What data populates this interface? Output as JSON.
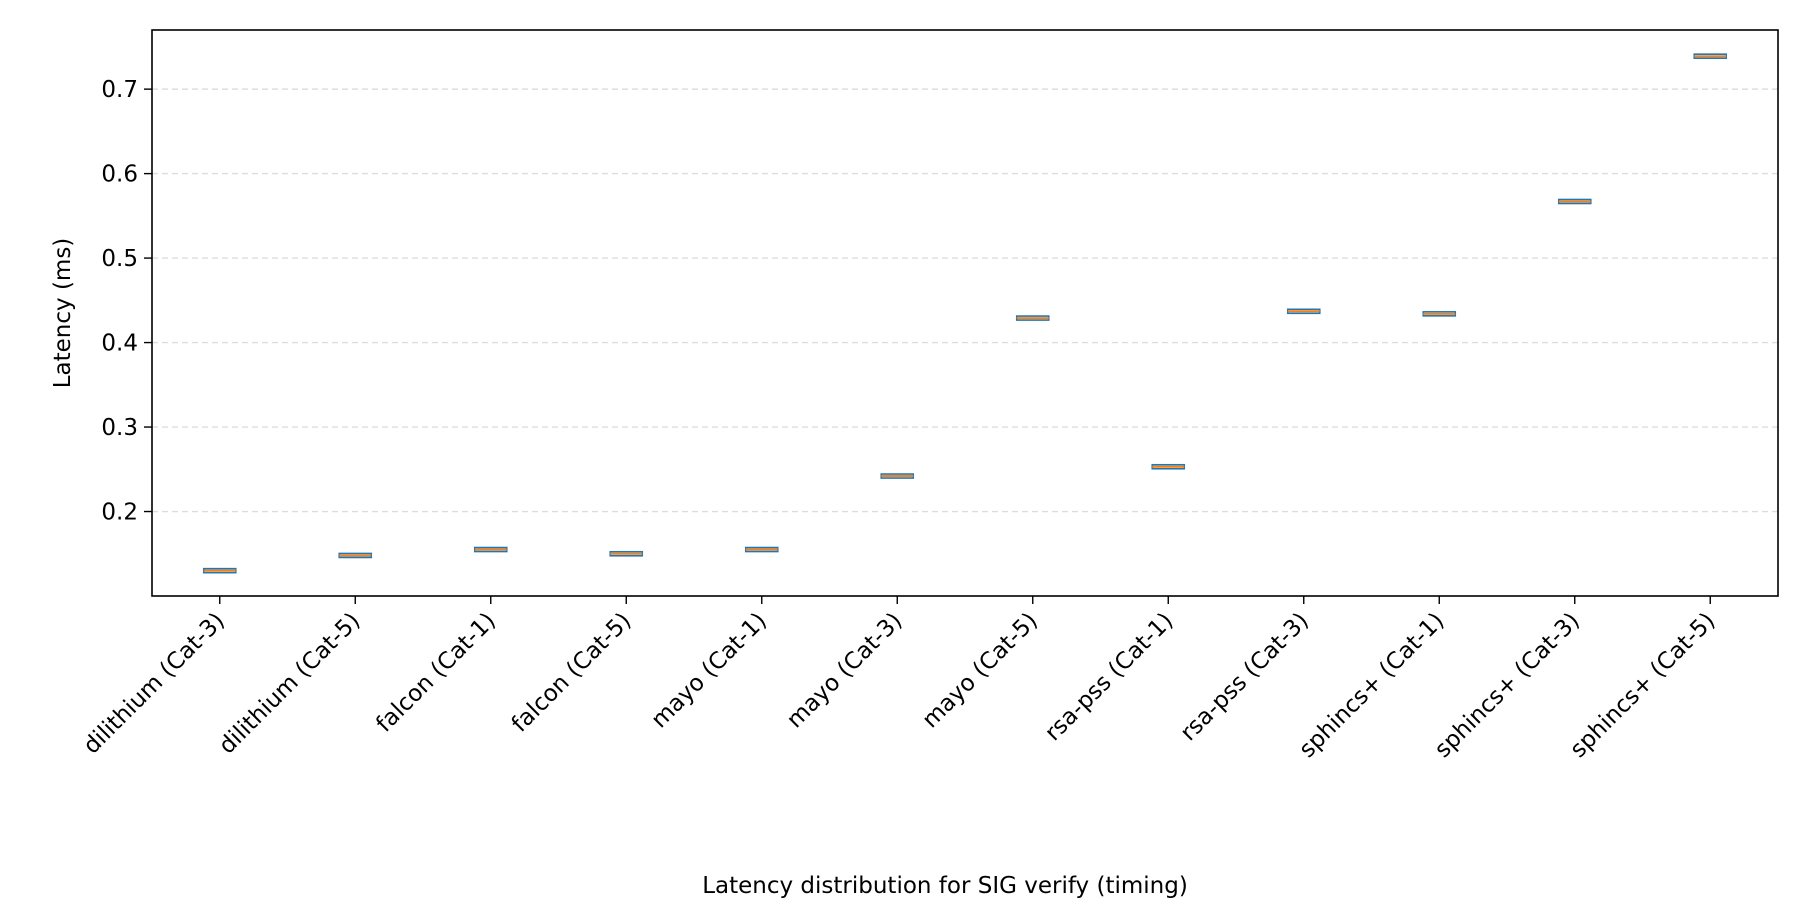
{
  "chart_data": {
    "type": "box",
    "title": "",
    "xlabel": "Latency distribution for SIG verify (timing)",
    "ylabel": "Latency (ms)",
    "ylim": [
      0.1,
      0.77
    ],
    "yticks": [
      0.2,
      0.3,
      0.4,
      0.5,
      0.6,
      0.7
    ],
    "ytick_labels": [
      "0.2",
      "0.3",
      "0.4",
      "0.5",
      "0.6",
      "0.7"
    ],
    "grid": "y-dashed",
    "legend": "none",
    "categories": [
      "dilithium (Cat-3)",
      "dilithium (Cat-5)",
      "falcon (Cat-1)",
      "falcon (Cat-5)",
      "mayo (Cat-1)",
      "mayo (Cat-3)",
      "mayo (Cat-5)",
      "rsa-pss (Cat-1)",
      "rsa-pss (Cat-3)",
      "sphincs+ (Cat-1)",
      "sphincs+ (Cat-3)",
      "sphincs+ (Cat-5)"
    ],
    "medians": [
      0.13,
      0.148,
      0.155,
      0.15,
      0.155,
      0.242,
      0.429,
      0.253,
      0.437,
      0.434,
      0.567,
      0.739
    ],
    "box_color": "#1f77b4",
    "median_color": "#ff7f0e",
    "grid_color": "#dddddd"
  }
}
